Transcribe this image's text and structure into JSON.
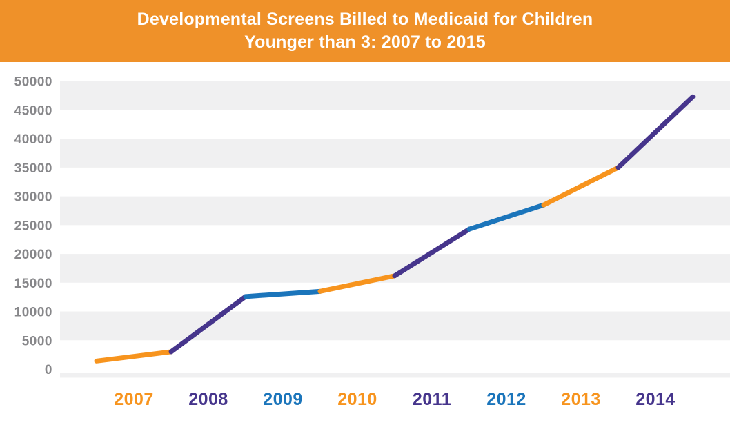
{
  "header": {
    "title_line1": "Developmental Screens Billed to Medicaid for Children",
    "title_line2": "Younger than 3: 2007 to 2015",
    "bg_color": "#EF9129",
    "text_color": "#FFFFFF"
  },
  "chart_data": {
    "type": "line",
    "title": "Developmental Screens Billed to Medicaid for Children Younger than 3: 2007 to 2015",
    "x": [
      2007,
      2008,
      2009,
      2010,
      2011,
      2012,
      2013,
      2014,
      2015
    ],
    "values": [
      1400,
      3000,
      12600,
      13500,
      16200,
      24300,
      28500,
      35000,
      47300
    ],
    "series": [
      {
        "name": "Developmental screens billed to Medicaid",
        "values": [
          1400,
          3000,
          12600,
          13500,
          16200,
          24300,
          28500,
          35000,
          47300
        ]
      }
    ],
    "segment_colors": [
      "#F7941E",
      "#46358C",
      "#1B75BB",
      "#F7941E",
      "#46358C",
      "#1B75BB",
      "#F7941E",
      "#46358C"
    ],
    "x_tick_labels": [
      {
        "label": "2007",
        "color": "#F7941E"
      },
      {
        "label": "2008",
        "color": "#46358C"
      },
      {
        "label": "2009",
        "color": "#1B75BB"
      },
      {
        "label": "2010",
        "color": "#F7941E"
      },
      {
        "label": "2011",
        "color": "#46358C"
      },
      {
        "label": "2012",
        "color": "#1B75BB"
      },
      {
        "label": "2013",
        "color": "#F7941E"
      },
      {
        "label": "2014",
        "color": "#46358C"
      }
    ],
    "y_tick_labels": [
      "0",
      "5000",
      "10000",
      "15000",
      "20000",
      "25000",
      "30000",
      "35000",
      "40000",
      "45000",
      "50000"
    ],
    "ylim": [
      0,
      50000
    ],
    "y_tick_interval": 5000,
    "xlabel": "",
    "ylabel": "",
    "legend": "none",
    "grid": "alternating light-gray horizontal bands over 5000-unit intervals (5000-10000, 15000-20000, 25000-30000, 35000-40000, 45000-50000, plus strip below 0)",
    "band_color": "#F0F0F1",
    "axis_label_color": "#87878A",
    "line_width": 7
  }
}
